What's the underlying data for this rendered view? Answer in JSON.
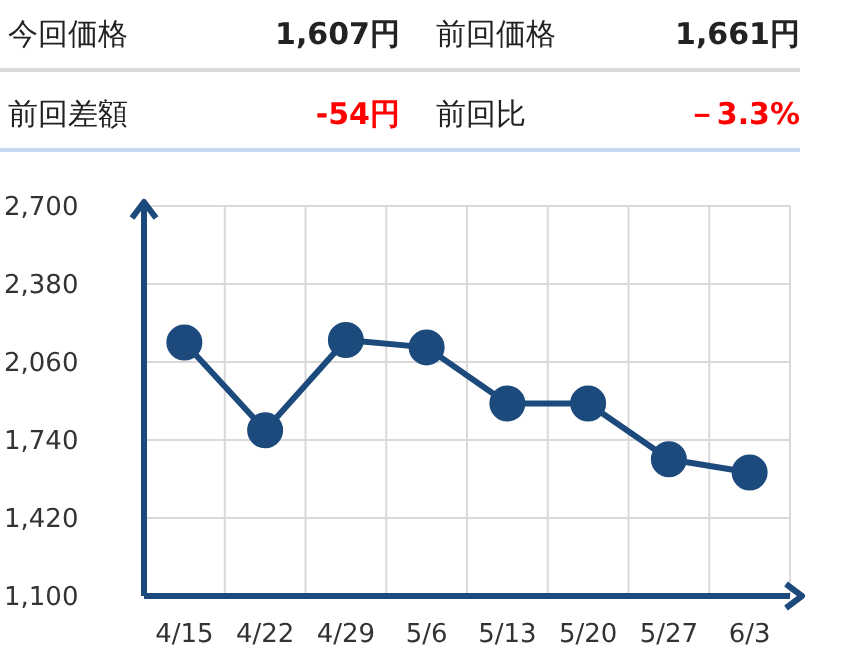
{
  "chart_data": {
    "type": "line",
    "annotations": [
      "今回価格",
      "1,607円",
      "前回価格",
      "1,661円",
      "前回差額",
      "-54円",
      "前回比",
      "－3.3%"
    ],
    "categories": [
      "4/15",
      "4/22",
      "4/29",
      "5/6",
      "5/13",
      "5/20",
      "5/27",
      "6/3"
    ],
    "series": [
      {
        "color": "#1d4a7c",
        "values": [
          2140,
          1780,
          2150,
          2120,
          1890,
          1890,
          1661,
          1607
        ]
      }
    ],
    "ylim": [
      1100,
      2700
    ],
    "yticks": [
      {
        "value": 1100,
        "label": "1,100"
      },
      {
        "value": 1420,
        "label": "1,420"
      },
      {
        "value": 1740,
        "label": "1,740"
      },
      {
        "value": 2060,
        "label": "2,060"
      },
      {
        "value": 2380,
        "label": "2,380"
      },
      {
        "value": 2700,
        "label": "2,700"
      }
    ],
    "grid": true,
    "marker": "circle",
    "line_style": "solid"
  }
}
